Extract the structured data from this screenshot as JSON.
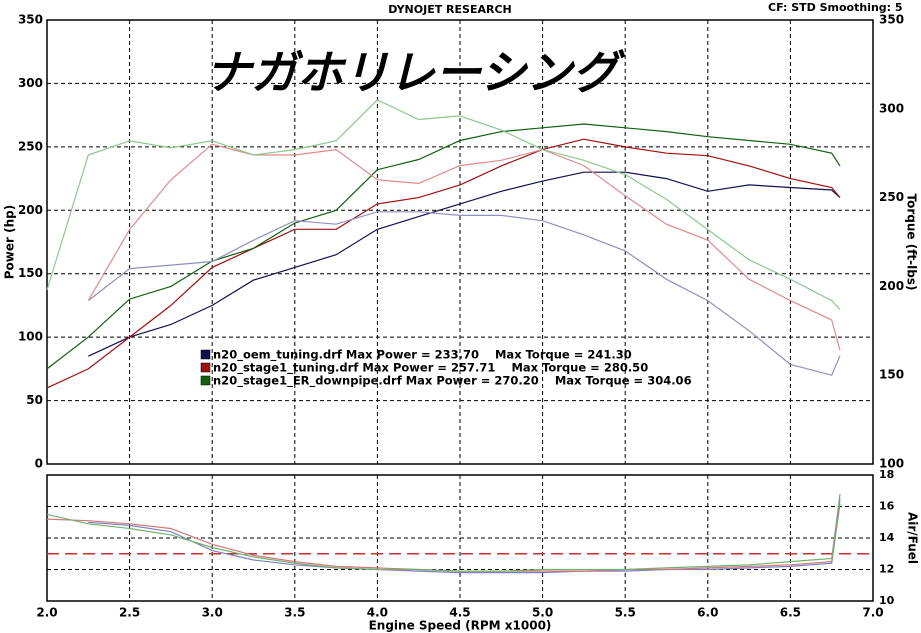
{
  "chart_data": [
    {
      "type": "line",
      "title": "DYNOJET RESEARCH",
      "subtitle": "CF: STD  Smoothing: 5",
      "annotation": "ナガホリレーシング",
      "ylabel": "Power (hp)",
      "y2label": "Torque (ft-lbs)",
      "legend_power_text": "Max Power =",
      "legend_torque_text": "Max Torque =",
      "x": [
        2.0,
        2.25,
        2.5,
        2.75,
        3.0,
        3.25,
        3.5,
        3.75,
        4.0,
        4.25,
        4.5,
        4.75,
        5.0,
        5.25,
        5.5,
        5.75,
        6.0,
        6.25,
        6.5,
        6.75,
        6.8
      ],
      "xlim": [
        2,
        7
      ],
      "xticks": [
        2,
        2.5,
        3,
        3.5,
        4,
        4.5,
        5,
        5.5,
        6,
        6.5,
        7
      ],
      "ylim": [
        0,
        350
      ],
      "yticks": [
        0,
        50,
        100,
        150,
        200,
        250,
        300,
        350
      ],
      "y2lim": [
        100,
        350
      ],
      "y2ticks": [
        100,
        150,
        200,
        250,
        300,
        350
      ],
      "grid": true,
      "series": [
        {
          "name": "n20_oem_tuning.drf",
          "color": "#101050",
          "max_power": {
            "value": 233.7,
            "label": "233.70"
          },
          "values": [
            null,
            85,
            100,
            110,
            125,
            145,
            155,
            165,
            185,
            195,
            205,
            215,
            223,
            230,
            230,
            225,
            215,
            220,
            218,
            216,
            210
          ]
        },
        {
          "name": "n20_stage1_tuning.drf",
          "color": "#a01010",
          "max_power": {
            "value": 257.71,
            "label": "257.71"
          },
          "values": [
            60,
            75,
            100,
            125,
            155,
            170,
            185,
            185,
            205,
            210,
            220,
            235,
            248,
            256,
            250,
            245,
            243,
            235,
            225,
            218,
            210
          ]
        },
        {
          "name": "n20_stage1_ER_downpipe.drf",
          "color": "#106010",
          "max_power": {
            "value": 270.2,
            "label": "270.20"
          },
          "values": [
            75,
            100,
            130,
            140,
            160,
            170,
            190,
            200,
            232,
            240,
            255,
            262,
            265,
            268,
            265,
            262,
            258,
            255,
            252,
            245,
            235
          ]
        },
        {
          "axis": "y2",
          "color": "#9090c0",
          "max_torque": {
            "value": 241.3,
            "label": "241.30"
          },
          "values": [
            null,
            192,
            210,
            212,
            214,
            226,
            237,
            235,
            242,
            242,
            240,
            240,
            237,
            229,
            220,
            204,
            192,
            175,
            156,
            150,
            161
          ]
        },
        {
          "axis": "y2",
          "color": "#e08a8a",
          "max_torque": {
            "value": 280.5,
            "label": "280.50"
          },
          "values": [
            null,
            192,
            232,
            260,
            280,
            274,
            274,
            277,
            260,
            258,
            268,
            271,
            277,
            268,
            251,
            235,
            226,
            204,
            192,
            181,
            164
          ]
        },
        {
          "axis": "y2",
          "color": "#8cc88c",
          "max_torque": {
            "value": 304.06,
            "label": "304.06"
          },
          "values": [
            198,
            274,
            282,
            278,
            282,
            274,
            277,
            282,
            305,
            294,
            296,
            288,
            277,
            271,
            263,
            249,
            232,
            215,
            204,
            192,
            187
          ]
        }
      ]
    },
    {
      "type": "line",
      "xlabel": "Engine Speed (RPM x1000)",
      "ylabel": "Air/Fuel",
      "x": [
        2.0,
        2.25,
        2.5,
        2.75,
        3.0,
        3.25,
        3.5,
        3.75,
        4.0,
        4.25,
        4.5,
        4.75,
        5.0,
        5.25,
        5.5,
        5.75,
        6.0,
        6.25,
        6.5,
        6.75,
        6.8
      ],
      "xlim": [
        2,
        7
      ],
      "xticks": [
        {
          "value": 2,
          "label": "2.0"
        },
        2.5,
        {
          "value": 3,
          "label": "3.0"
        },
        3.5,
        {
          "value": 4,
          "label": "4.0"
        },
        4.5,
        {
          "value": 5,
          "label": "5.0"
        },
        5.5,
        {
          "value": 6,
          "label": "6.0"
        },
        6.5,
        {
          "value": 7,
          "label": "7.0"
        }
      ],
      "ylim": [
        10,
        18
      ],
      "yticks": [
        10,
        12,
        14,
        16,
        18
      ],
      "grid": true,
      "reference": 13,
      "reference_color": "#c83030",
      "series": [
        {
          "color": "#8080c0",
          "values": [
            null,
            15.0,
            14.8,
            14.4,
            13.2,
            12.6,
            12.3,
            12.1,
            12.0,
            11.9,
            11.8,
            11.8,
            11.8,
            11.9,
            11.9,
            12.0,
            12.0,
            12.1,
            12.2,
            12.4,
            16.2
          ]
        },
        {
          "color": "#d07878",
          "values": [
            15.2,
            15.1,
            14.9,
            14.6,
            13.6,
            12.9,
            12.5,
            12.2,
            12.1,
            12.0,
            11.9,
            11.9,
            11.9,
            11.9,
            12.0,
            12.0,
            12.1,
            12.2,
            12.3,
            12.5,
            16.5
          ]
        },
        {
          "color": "#70b070",
          "values": [
            15.5,
            14.9,
            14.6,
            14.2,
            13.4,
            12.8,
            12.4,
            12.1,
            12.0,
            12.0,
            11.9,
            11.9,
            12.0,
            12.0,
            12.0,
            12.1,
            12.2,
            12.3,
            12.5,
            12.7,
            16.8
          ]
        }
      ]
    }
  ]
}
